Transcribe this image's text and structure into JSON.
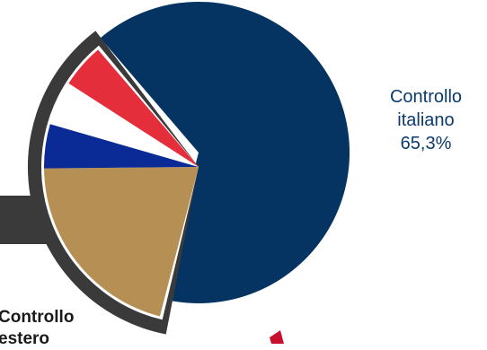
{
  "chart_data": {
    "type": "pie",
    "slices": [
      {
        "label_lines": [
          "Controllo",
          "italiano",
          "65,3%"
        ],
        "value": 65.3,
        "color": "#053463"
      },
      {
        "label_lines": [
          "Controllo",
          "estero"
        ],
        "value": 34.7,
        "color": "#b68f54"
      }
    ],
    "colors": {
      "frame": "#3a3a3a",
      "flag_blue": "#0a2a96",
      "flag_white": "#ffffff",
      "flag_red": "#e52e3c"
    }
  }
}
